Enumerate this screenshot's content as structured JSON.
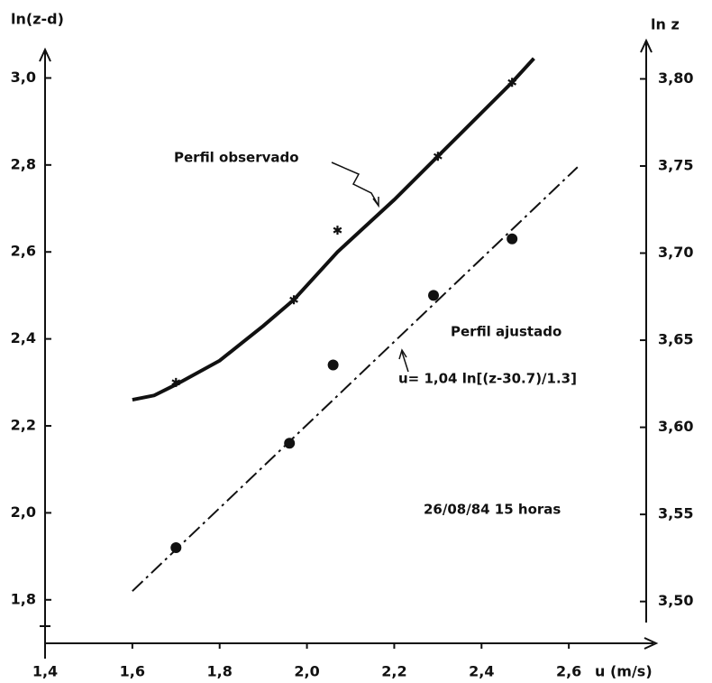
{
  "chart_data": {
    "type": "line",
    "y_label": "ln(z-d)",
    "y2_label": "ln z",
    "x_label": "u (m/s)",
    "xlim": [
      1.4,
      2.8
    ],
    "ylim": [
      1.7,
      3.07
    ],
    "y2lim": [
      3.476,
      3.818
    ],
    "xticks": [
      {
        "value": 1.4,
        "label": "1,4"
      },
      {
        "value": 1.6,
        "label": "1,6"
      },
      {
        "value": 1.8,
        "label": "1,8"
      },
      {
        "value": 2.0,
        "label": "2,0"
      },
      {
        "value": 2.2,
        "label": "2,2"
      },
      {
        "value": 2.4,
        "label": "2,4"
      },
      {
        "value": 2.6,
        "label": "2,6"
      }
    ],
    "yticks": [
      {
        "value": 1.8,
        "label": "1,8"
      },
      {
        "value": 2.0,
        "label": "2,0"
      },
      {
        "value": 2.2,
        "label": "2,2"
      },
      {
        "value": 2.4,
        "label": "2,4"
      },
      {
        "value": 2.6,
        "label": "2,6"
      },
      {
        "value": 2.8,
        "label": "2,8"
      },
      {
        "value": 3.0,
        "label": "3,0"
      }
    ],
    "y2ticks": [
      {
        "value": 3.5,
        "label": "3,50"
      },
      {
        "value": 3.55,
        "label": "3,55"
      },
      {
        "value": 3.6,
        "label": "3,60"
      },
      {
        "value": 3.65,
        "label": "3,65"
      },
      {
        "value": 3.7,
        "label": "3,70"
      },
      {
        "value": 3.75,
        "label": "3,75"
      },
      {
        "value": 3.8,
        "label": "3,80"
      }
    ],
    "series": [
      {
        "type": "line",
        "style": "solid",
        "color": "#111",
        "x": [
          1.6,
          1.65,
          1.7,
          1.8,
          1.9,
          1.97,
          2.07,
          2.2,
          2.3,
          2.4,
          2.47,
          2.52
        ],
        "values": [
          2.26,
          2.27,
          2.295,
          2.35,
          2.43,
          2.49,
          2.6,
          2.72,
          2.82,
          2.92,
          2.99,
          3.045
        ]
      },
      {
        "type": "scatter",
        "marker": "star",
        "color": "#111",
        "x": [
          1.7,
          1.97,
          2.07,
          2.3,
          2.47
        ],
        "values": [
          2.3,
          2.49,
          2.65,
          2.82,
          2.99
        ]
      },
      {
        "type": "line",
        "style": "dashdot",
        "color": "#111",
        "x": [
          1.6,
          2.62
        ],
        "values": [
          1.82,
          2.795
        ]
      },
      {
        "type": "scatter",
        "marker": "circle",
        "color": "#111",
        "x": [
          1.7,
          1.96,
          2.06,
          2.29,
          2.47
        ],
        "values": [
          1.92,
          2.16,
          2.34,
          2.5,
          2.63
        ]
      }
    ],
    "annotations": [
      "Perfil observado",
      "Perfil ajustado",
      "u= 1,04 ln[(z-30.7)/1.3]",
      "26/08/84 15 horas"
    ]
  }
}
